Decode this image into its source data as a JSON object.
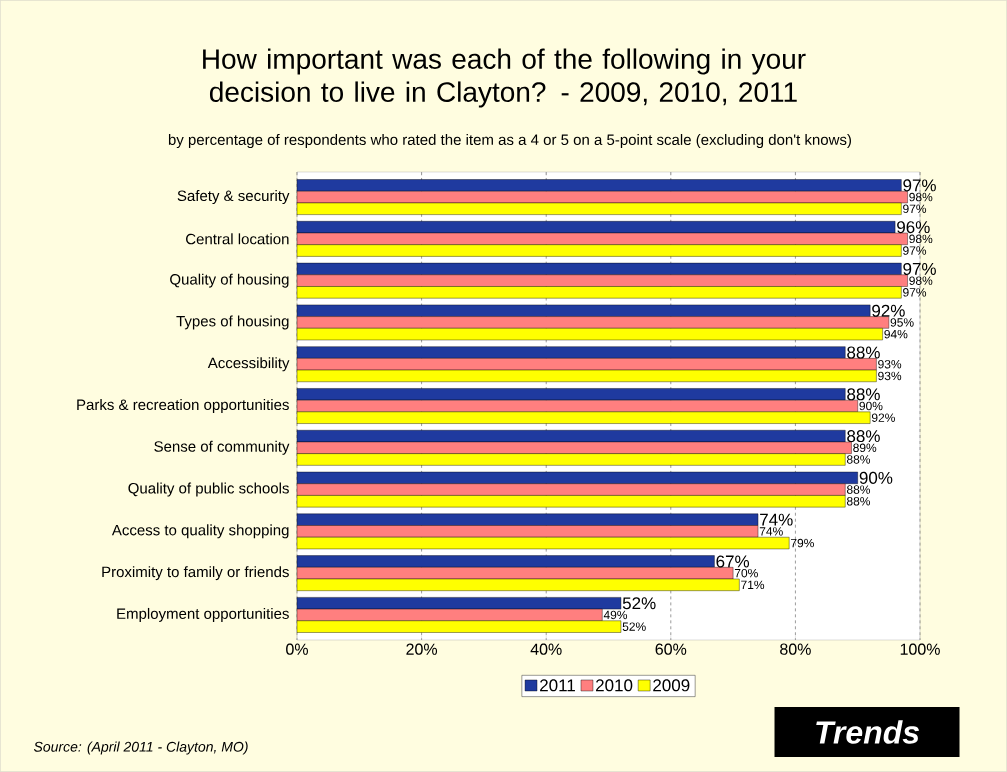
{
  "chart_data": {
    "type": "bar",
    "orientation": "horizontal",
    "title": "How important was each of the following in your decision to live in Clayton? - 2009, 2010, 2011",
    "subtitle": "by percentage of respondents who rated the item as a 4 or 5 on a 5-point scale (excluding don't knows)",
    "categories": [
      "Safety & security",
      "Central location",
      "Quality of housing",
      "Types of housing",
      "Accessibility",
      "Parks & recreation opportunities",
      "Sense of community",
      "Quality of public schools",
      "Access to quality shopping",
      "Proximity to family or friends",
      "Employment opportunities"
    ],
    "series": [
      {
        "name": "2011",
        "color": "#1f3a9f",
        "values": [
          97,
          96,
          97,
          92,
          88,
          88,
          88,
          90,
          74,
          67,
          52
        ],
        "value_labels": [
          "97%",
          "96%",
          "97%",
          "92%",
          "88%",
          "88%",
          "88%",
          "90%",
          "74%",
          "67%",
          "52%"
        ]
      },
      {
        "name": "2010",
        "color": "#ff7f7f",
        "values": [
          98,
          98,
          98,
          95,
          93,
          90,
          89,
          88,
          74,
          70,
          49
        ],
        "value_labels": [
          "98%",
          "98%",
          "98%",
          "95%",
          "93%",
          "90%",
          "89%",
          "88%",
          "74%",
          "70%",
          "49%"
        ]
      },
      {
        "name": "2009",
        "color": "#ffff00",
        "values": [
          97,
          97,
          97,
          94,
          93,
          92,
          88,
          88,
          79,
          71,
          52
        ],
        "value_labels": [
          "97%",
          "97%",
          "97%",
          "94%",
          "93%",
          "92%",
          "88%",
          "88%",
          "79%",
          "71%",
          "52%"
        ]
      }
    ],
    "xlim": [
      0,
      100
    ],
    "xticks": [
      {
        "value": 0,
        "label": "0%"
      },
      {
        "value": 20,
        "label": "20%"
      },
      {
        "value": 40,
        "label": "40%"
      },
      {
        "value": 60,
        "label": "60%"
      },
      {
        "value": 80,
        "label": "80%"
      },
      {
        "value": 100,
        "label": "100%"
      }
    ],
    "grid": "x",
    "legend": "bottom",
    "annotations": [
      "Source: (April 2011 - Clayton, MO)",
      "Trends"
    ]
  }
}
